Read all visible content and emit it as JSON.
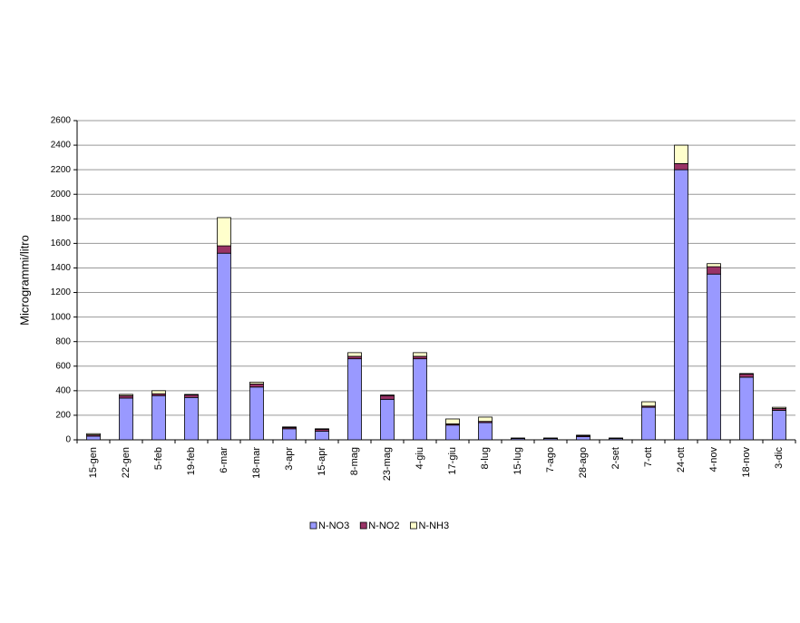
{
  "chart_data": {
    "type": "stacked_bar",
    "y_label": "Microgrammi/litro",
    "categories": [
      "15-gen",
      "22-gen",
      "5-feb",
      "19-feb",
      "6-mar",
      "18-mar",
      "3-apr",
      "15-apr",
      "8-mag",
      "23-mag",
      "4-giu",
      "17-giu",
      "8-lug",
      "15-lug",
      "7-ago",
      "28-ago",
      "2-set",
      "7-ott",
      "24-ott",
      "4-nov",
      "18-nov",
      "3-dic"
    ],
    "series": [
      {
        "name": "N-NO3",
        "color": "#9999ff",
        "values": [
          30,
          340,
          360,
          345,
          1520,
          430,
          90,
          70,
          660,
          330,
          660,
          120,
          140,
          10,
          10,
          25,
          10,
          265,
          2200,
          1350,
          510,
          240
        ]
      },
      {
        "name": "N-NO2",
        "color": "#993366",
        "values": [
          10,
          20,
          15,
          20,
          60,
          25,
          10,
          15,
          20,
          30,
          20,
          10,
          10,
          5,
          3,
          8,
          3,
          10,
          50,
          60,
          25,
          15
        ]
      },
      {
        "name": "N-NH3",
        "color": "#ffffcc",
        "values": [
          10,
          10,
          25,
          5,
          230,
          15,
          5,
          5,
          30,
          5,
          30,
          40,
          35,
          0,
          2,
          5,
          2,
          35,
          150,
          25,
          5,
          10
        ]
      }
    ],
    "ylim": [
      0,
      2600
    ],
    "yticks": [
      0,
      200,
      400,
      600,
      800,
      1000,
      1200,
      1400,
      1600,
      1800,
      2000,
      2200,
      2400,
      2600
    ],
    "grid": true,
    "legend": "bottom"
  }
}
